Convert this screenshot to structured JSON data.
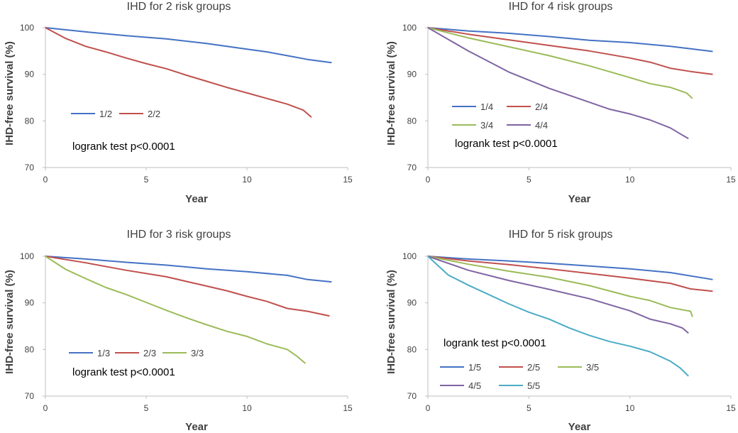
{
  "chart_data": [
    {
      "type": "line",
      "title": "IHD for 2 risk groups",
      "xlabel": "Year",
      "ylabel": "IHD-free survival (%)",
      "xlim": [
        0,
        15
      ],
      "ylim": [
        70,
        100
      ],
      "xticks": [
        "0",
        "5",
        "10",
        "15"
      ],
      "yticks": [
        "70",
        "80",
        "90",
        "100"
      ],
      "annotation": "logrank test p<0.0001",
      "series": [
        {
          "name": "1/2",
          "color": "#4472C4",
          "x": [
            0,
            2,
            4,
            6,
            8,
            10,
            11,
            12,
            13,
            14.2
          ],
          "values": [
            100,
            99.1,
            98.3,
            97.6,
            96.6,
            95.4,
            94.8,
            94.0,
            93.2,
            92.5
          ]
        },
        {
          "name": "2/2",
          "color": "#C0504D",
          "x": [
            0,
            1,
            2,
            3,
            4,
            5,
            6,
            7,
            8,
            9,
            10,
            11,
            12,
            12.8,
            13.2
          ],
          "values": [
            100,
            97.7,
            96.0,
            94.8,
            93.5,
            92.3,
            91.2,
            89.8,
            88.5,
            87.2,
            86.0,
            84.8,
            83.6,
            82.3,
            80.8
          ]
        }
      ]
    },
    {
      "type": "line",
      "title": "IHD for 4 risk groups",
      "xlabel": "Year",
      "ylabel": "IHD-free survival (%)",
      "xlim": [
        0,
        15
      ],
      "ylim": [
        70,
        100
      ],
      "xticks": [
        "0",
        "5",
        "10",
        "15"
      ],
      "yticks": [
        "70",
        "80",
        "90",
        "100"
      ],
      "annotation": "logrank test p<0.0001",
      "series": [
        {
          "name": "1/4",
          "color": "#4472C4",
          "x": [
            0,
            2,
            4,
            6,
            8,
            10,
            12,
            14.1
          ],
          "values": [
            100,
            99.3,
            98.8,
            98.1,
            97.3,
            96.8,
            96.0,
            94.9
          ]
        },
        {
          "name": "2/4",
          "color": "#C0504D",
          "x": [
            0,
            2,
            4,
            6,
            8,
            10,
            11,
            12,
            13,
            14.1
          ],
          "values": [
            100,
            98.6,
            97.4,
            96.2,
            95.0,
            93.5,
            92.6,
            91.3,
            90.6,
            90.0
          ]
        },
        {
          "name": "3/4",
          "color": "#9BBB59",
          "x": [
            0,
            2,
            4,
            6,
            8,
            10,
            11,
            12,
            12.8,
            13.1
          ],
          "values": [
            100,
            97.8,
            95.9,
            94.0,
            91.8,
            89.3,
            88.0,
            87.2,
            86.0,
            84.8
          ]
        },
        {
          "name": "4/4",
          "color": "#8064A2",
          "x": [
            0,
            2,
            4,
            6,
            8,
            9,
            10,
            11,
            12,
            12.5,
            12.9
          ],
          "values": [
            100,
            95.0,
            90.5,
            87.0,
            84.0,
            82.5,
            81.5,
            80.2,
            78.5,
            77.2,
            76.2
          ]
        }
      ]
    },
    {
      "type": "line",
      "title": "IHD for 3 risk groups",
      "xlabel": "Year",
      "ylabel": "IHD-free survival (%)",
      "xlim": [
        0,
        15
      ],
      "ylim": [
        70,
        100
      ],
      "xticks": [
        "0",
        "5",
        "10",
        "15"
      ],
      "yticks": [
        "70",
        "80",
        "90",
        "100"
      ],
      "annotation": "logrank test p<0.0001",
      "series": [
        {
          "name": "1/3",
          "color": "#4472C4",
          "x": [
            0,
            2,
            4,
            6,
            8,
            10,
            12,
            13,
            14.2
          ],
          "values": [
            100,
            99.4,
            98.7,
            98.1,
            97.3,
            96.7,
            95.9,
            95.0,
            94.5
          ]
        },
        {
          "name": "2/3",
          "color": "#C0504D",
          "x": [
            0,
            2,
            4,
            6,
            7,
            8,
            9,
            10,
            11,
            12,
            13,
            14.1
          ],
          "values": [
            100,
            98.6,
            97.0,
            95.6,
            94.6,
            93.6,
            92.6,
            91.4,
            90.3,
            88.8,
            88.2,
            87.2
          ]
        },
        {
          "name": "3/3",
          "color": "#9BBB59",
          "x": [
            0,
            1,
            2,
            3,
            4,
            5,
            6,
            7,
            8,
            9,
            10,
            11,
            12,
            12.5,
            12.9
          ],
          "values": [
            100,
            97.2,
            95.2,
            93.3,
            91.8,
            90.1,
            88.4,
            86.8,
            85.3,
            83.9,
            82.8,
            81.2,
            80.0,
            78.5,
            77.0
          ]
        }
      ]
    },
    {
      "type": "line",
      "title": "IHD for 5 risk groups",
      "xlabel": "Year",
      "ylabel": "IHD-free survival (%)",
      "xlim": [
        0,
        15
      ],
      "ylim": [
        70,
        100
      ],
      "xticks": [
        "0",
        "5",
        "10",
        "15"
      ],
      "yticks": [
        "70",
        "80",
        "90",
        "100"
      ],
      "annotation": "logrank test p<0.0001",
      "series": [
        {
          "name": "1/5",
          "color": "#4472C4",
          "x": [
            0,
            2,
            4,
            6,
            8,
            10,
            12,
            14.1
          ],
          "values": [
            100,
            99.4,
            99.0,
            98.5,
            97.9,
            97.3,
            96.5,
            95.0
          ]
        },
        {
          "name": "2/5",
          "color": "#C0504D",
          "x": [
            0,
            2,
            4,
            6,
            8,
            10,
            12,
            13,
            14.1
          ],
          "values": [
            100,
            99.0,
            98.2,
            97.3,
            96.3,
            95.3,
            94.2,
            93.0,
            92.5
          ]
        },
        {
          "name": "3/5",
          "color": "#9BBB59",
          "x": [
            0,
            2,
            4,
            6,
            8,
            10,
            11,
            12,
            13,
            13.1
          ],
          "values": [
            100,
            98.3,
            96.8,
            95.5,
            93.7,
            91.4,
            90.5,
            89.0,
            88.2,
            87.0
          ]
        },
        {
          "name": "4/5",
          "color": "#8064A2",
          "x": [
            0,
            2,
            4,
            6,
            8,
            10,
            11,
            12,
            12.6,
            12.9
          ],
          "values": [
            100,
            97.0,
            94.8,
            92.9,
            90.9,
            88.3,
            86.5,
            85.5,
            84.6,
            83.5
          ]
        },
        {
          "name": "5/5",
          "color": "#4BACC6",
          "x": [
            0,
            1,
            2,
            3,
            4,
            5,
            6,
            7,
            8,
            9,
            10,
            11,
            12,
            12.5,
            12.9
          ],
          "values": [
            100,
            96.0,
            93.8,
            91.8,
            89.8,
            88.0,
            86.5,
            84.6,
            83.0,
            81.7,
            80.7,
            79.5,
            77.5,
            76.0,
            74.3
          ]
        }
      ]
    }
  ]
}
